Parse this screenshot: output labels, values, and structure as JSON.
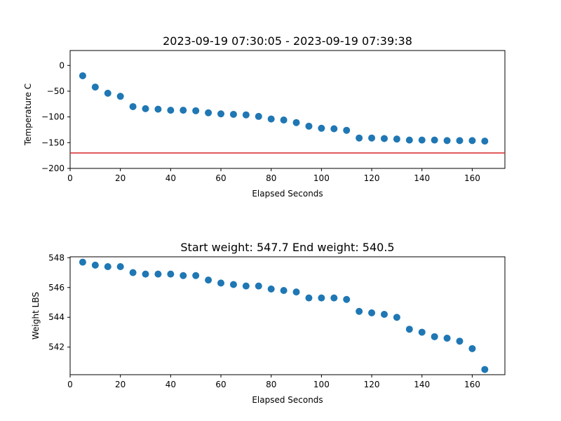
{
  "chart_data": [
    {
      "type": "scatter",
      "title": "2023-09-19 07:30:05 - 2023-09-19 07:39:38",
      "xlabel": "Elapsed Seconds",
      "ylabel": "Temperature C",
      "xlim": [
        0,
        173
      ],
      "ylim": [
        -200,
        29
      ],
      "xticks": [
        0,
        20,
        40,
        60,
        80,
        100,
        120,
        140,
        160
      ],
      "yticks": [
        -200,
        -150,
        -100,
        -50,
        0
      ],
      "grid": false,
      "series": [
        {
          "color": "#1f77b4",
          "x": [
            5,
            10,
            15,
            20,
            25,
            30,
            35,
            40,
            45,
            50,
            55,
            60,
            65,
            70,
            75,
            80,
            85,
            90,
            95,
            100,
            105,
            110,
            115,
            120,
            125,
            130,
            135,
            140,
            145,
            150,
            155,
            160,
            165
          ],
          "y": [
            -20,
            -42,
            -54,
            -60,
            -80,
            -84,
            -85,
            -87,
            -87,
            -88,
            -92,
            -94,
            -95,
            -96,
            -99,
            -104,
            -106,
            -111,
            -118,
            -122,
            -123,
            -126,
            -141,
            -141,
            -142,
            -143,
            -145,
            -145,
            -145,
            -146,
            -146,
            -146,
            -147
          ]
        }
      ],
      "hlines": [
        {
          "y": -170,
          "color": "#d62728"
        }
      ]
    },
    {
      "type": "scatter",
      "title": "Start weight: 547.7 End weight: 540.5",
      "xlabel": "Elapsed Seconds",
      "ylabel": "Weight LBS",
      "xlim": [
        0,
        173
      ],
      "ylim": [
        540.15,
        548.06
      ],
      "xticks": [
        0,
        20,
        40,
        60,
        80,
        100,
        120,
        140,
        160
      ],
      "yticks": [
        542,
        544,
        546,
        548
      ],
      "grid": false,
      "series": [
        {
          "color": "#1f77b4",
          "x": [
            5,
            10,
            15,
            20,
            25,
            30,
            35,
            40,
            45,
            50,
            55,
            60,
            65,
            70,
            75,
            80,
            85,
            90,
            95,
            100,
            105,
            110,
            115,
            120,
            125,
            130,
            135,
            140,
            145,
            150,
            155,
            160,
            165
          ],
          "y": [
            547.7,
            547.5,
            547.4,
            547.4,
            547.0,
            546.9,
            546.9,
            546.9,
            546.8,
            546.8,
            546.5,
            546.3,
            546.2,
            546.1,
            546.1,
            545.9,
            545.8,
            545.7,
            545.3,
            545.3,
            545.3,
            545.2,
            544.4,
            544.3,
            544.2,
            544.0,
            543.2,
            543.0,
            542.7,
            542.6,
            542.4,
            541.9,
            540.5
          ]
        }
      ]
    }
  ]
}
